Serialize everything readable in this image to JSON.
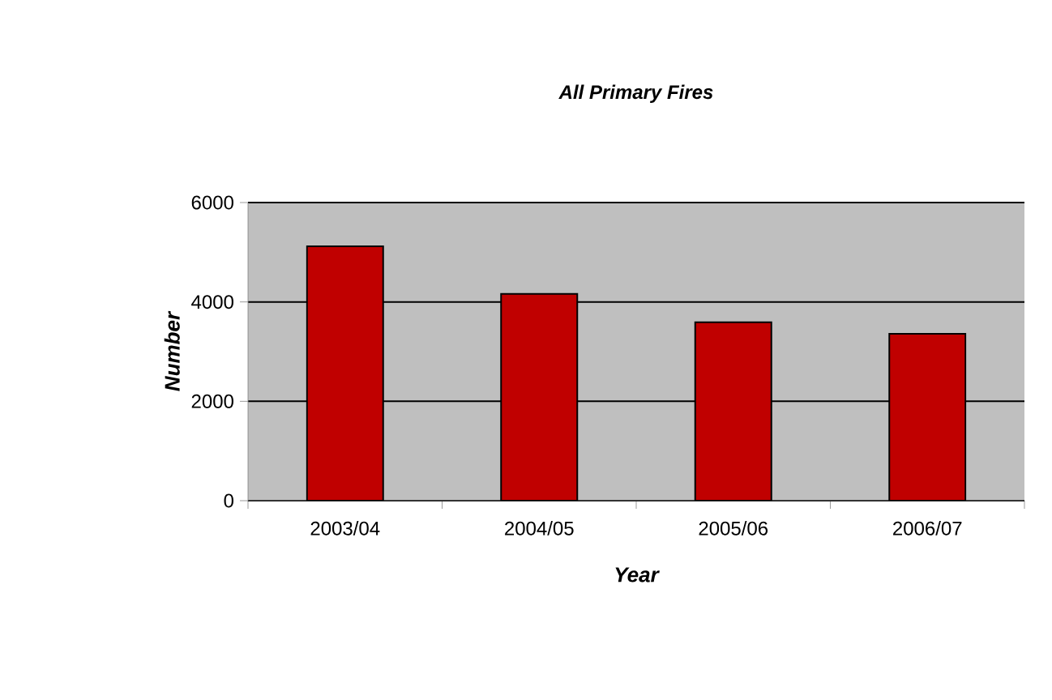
{
  "chart_data": {
    "type": "bar",
    "title": "All Primary Fires",
    "xlabel": "Year",
    "ylabel": "Number",
    "categories": [
      "2003/04",
      "2004/05",
      "2005/06",
      "2006/07"
    ],
    "values": [
      5120,
      4160,
      3590,
      3360
    ],
    "color": "#c00000",
    "ylim": [
      0,
      6000
    ],
    "yticks": [
      0,
      2000,
      4000,
      6000
    ],
    "grid": "y"
  }
}
